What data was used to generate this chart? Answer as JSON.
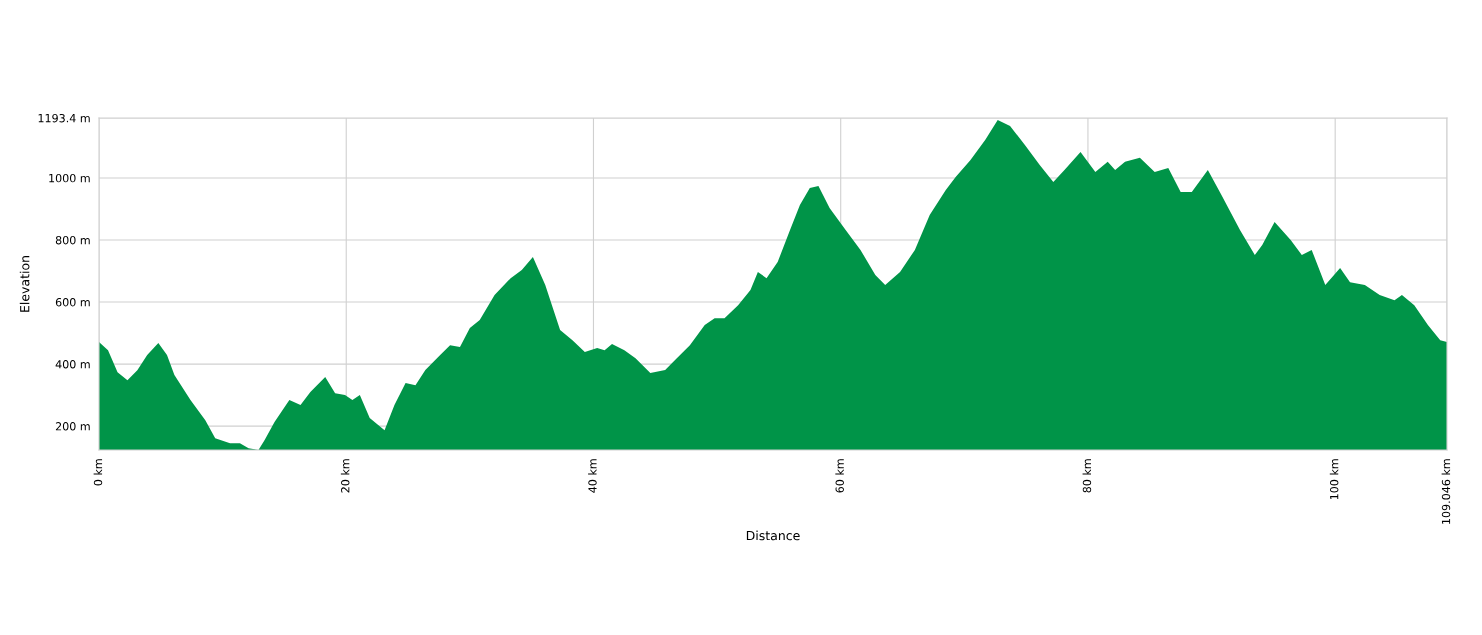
{
  "chart_data": {
    "type": "area",
    "xlabel": "Distance",
    "ylabel": "Elevation",
    "x": [
      0,
      0.73,
      1.5,
      2.3,
      3.1,
      3.9,
      4.8,
      5.5,
      6.1,
      7.4,
      8.6,
      9.4,
      10.6,
      11.4,
      12.1,
      12.9,
      13.4,
      14.2,
      15.4,
      16.3,
      17.1,
      18.3,
      19.1,
      19.9,
      20.5,
      21.1,
      21.9,
      23.1,
      23.9,
      24.8,
      25.6,
      26.4,
      27.6,
      28.4,
      29.2,
      30.0,
      30.8,
      32.0,
      33.3,
      34.2,
      35.1,
      36.1,
      37.3,
      38.3,
      39.3,
      40.3,
      40.9,
      41.5,
      42.5,
      43.4,
      44.6,
      45.8,
      46.6,
      47.8,
      49.0,
      49.8,
      50.6,
      51.7,
      52.7,
      53.3,
      54.0,
      54.9,
      55.9,
      56.7,
      57.5,
      58.2,
      59.1,
      60.4,
      61.6,
      62.8,
      63.6,
      64.8,
      66.0,
      67.2,
      68.5,
      69.3,
      70.5,
      71.7,
      72.7,
      73.7,
      74.9,
      76.1,
      77.2,
      78.1,
      79.4,
      80.6,
      81.6,
      82.2,
      83.0,
      84.2,
      85.4,
      86.5,
      87.5,
      88.4,
      89.7,
      90.8,
      92.3,
      93.5,
      94.1,
      95.1,
      96.4,
      97.3,
      98.1,
      99.2,
      100.4,
      101.2,
      102.4,
      103.6,
      104.8,
      105.4,
      106.4,
      107.5,
      108.5,
      109.046
    ],
    "series": [
      {
        "color": "#009448",
        "values": [
          471,
          445,
          374,
          348,
          380,
          429,
          468,
          429,
          365,
          284,
          219,
          161,
          145,
          145,
          129,
          123,
          155,
          213,
          284,
          268,
          310,
          358,
          306,
          300,
          284,
          300,
          226,
          187,
          268,
          339,
          332,
          381,
          429,
          461,
          455,
          516,
          542,
          623,
          677,
          703,
          745,
          655,
          510,
          477,
          439,
          452,
          445,
          465,
          445,
          419,
          371,
          381,
          413,
          461,
          526,
          548,
          548,
          590,
          639,
          697,
          677,
          729,
          832,
          913,
          968,
          974,
          903,
          832,
          768,
          687,
          655,
          697,
          768,
          881,
          961,
          1003,
          1058,
          1123,
          1187,
          1168,
          1106,
          1042,
          987,
          1026,
          1084,
          1019,
          1052,
          1026,
          1052,
          1065,
          1019,
          1032,
          955,
          955,
          1026,
          945,
          832,
          752,
          784,
          858,
          800,
          752,
          768,
          655,
          710,
          664,
          655,
          623,
          606,
          623,
          590,
          526,
          477,
          471
        ]
      }
    ],
    "xlim": [
      0,
      109.046
    ],
    "xticks": [
      {
        "value": 0,
        "label": "0 km"
      },
      {
        "value": 20,
        "label": "20 km"
      },
      {
        "value": 40,
        "label": "40 km"
      },
      {
        "value": 60,
        "label": "60 km"
      },
      {
        "value": 80,
        "label": "80 km"
      },
      {
        "value": 100,
        "label": "100 km"
      },
      {
        "value": 109.046,
        "label": "109.046 km"
      }
    ],
    "ylim": [
      123,
      1193.4
    ],
    "yticks": [
      {
        "value": 200,
        "label": "200 m"
      },
      {
        "value": 400,
        "label": "400 m"
      },
      {
        "value": 600,
        "label": "600 m"
      },
      {
        "value": 800,
        "label": "800 m"
      },
      {
        "value": 1000,
        "label": "1000 m"
      },
      {
        "value": 1193.4,
        "label": "1193.4 m"
      }
    ],
    "grid": true
  }
}
